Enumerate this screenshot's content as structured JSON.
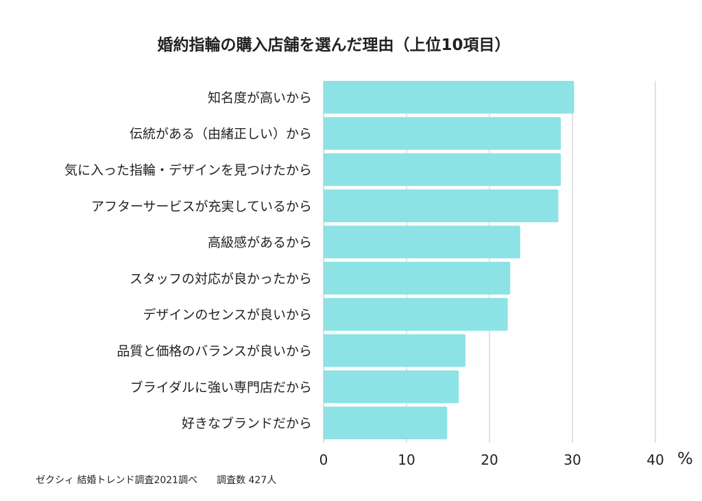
{
  "chart_data": {
    "type": "bar",
    "orientation": "horizontal",
    "title": "婚約指輪の購入店舗を選んだ理由（上位10項目）",
    "categories": [
      "知名度が高いから",
      "伝統がある（由緒正しい）から",
      "気に入った指輪・デザインを見つけたから",
      "アフターサービスが充実しているから",
      "高級感があるから",
      "スタッフの対応が良かったから",
      "デザインのセンスが良いから",
      "品質と価格のバランスが良いから",
      "ブライダルに強い専門店だから",
      "好きなブランドだから"
    ],
    "values": [
      30.2,
      28.6,
      28.6,
      28.3,
      23.7,
      22.5,
      22.2,
      17.1,
      16.3,
      14.9
    ],
    "xlim": [
      0,
      40
    ],
    "xticks": [
      "0",
      "10",
      "20",
      "30",
      "40"
    ],
    "xunit": "%",
    "grid": true,
    "bar_color": "#8de2e6",
    "grid_color": "#d9d9d9",
    "source": "ゼクシィ 結婚トレンド調査2021調べ　　調査数 427人"
  }
}
